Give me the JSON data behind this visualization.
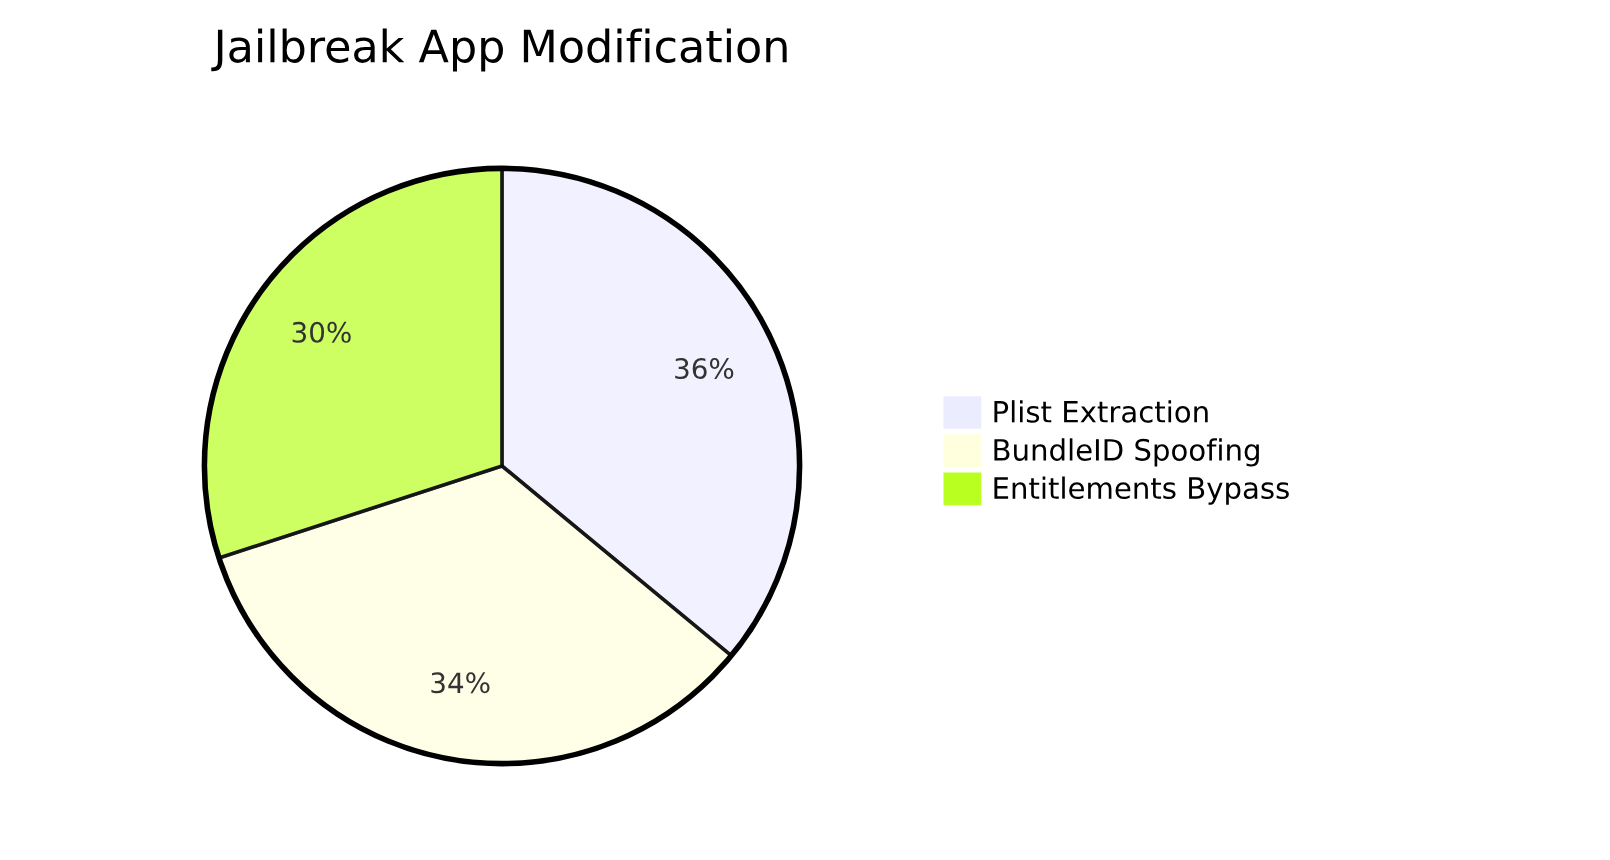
{
  "chart_data": {
    "type": "pie",
    "title": "Jailbreak App Modification",
    "categories": [
      "Plist Extraction",
      "BundleID Spoofing",
      "Entitlements Bypass"
    ],
    "values": [
      36,
      34,
      30
    ],
    "value_labels": [
      "36%",
      "34%",
      "30%"
    ],
    "colors": [
      "#ececff",
      "#ffffde",
      "#b9ff20"
    ],
    "legend": "right"
  }
}
